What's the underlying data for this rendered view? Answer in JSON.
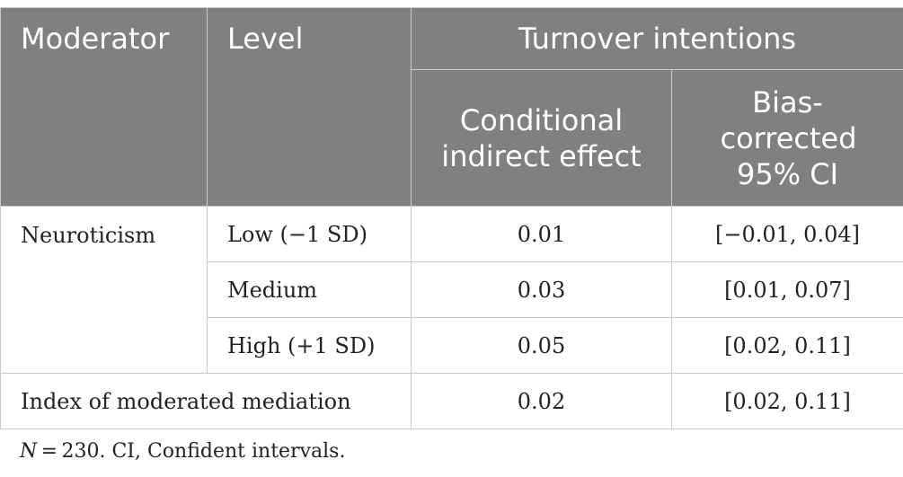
{
  "table": {
    "headers": {
      "moderator": "Moderator",
      "level": "Level",
      "group": "Turnover intentions",
      "col_effect": "Conditional indirect effect",
      "col_ci": "Bias-corrected 95% CI"
    },
    "rows": [
      {
        "moderator": "Neuroticism",
        "level": "Low (−1 SD)",
        "effect": "0.01",
        "ci": "[−0.01, 0.04]"
      },
      {
        "level": "Medium",
        "effect": "0.03",
        "ci": "[0.01, 0.07]"
      },
      {
        "level": "High (+1 SD)",
        "effect": "0.05",
        "ci": "[0.02, 0.11]"
      }
    ],
    "index_row": {
      "label": "Index of moderated mediation",
      "effect": "0.02",
      "ci": "[0.02, 0.11]"
    }
  },
  "footnote": {
    "n_symbol": "N",
    "n_text": " = 230. CI, Confident intervals."
  }
}
